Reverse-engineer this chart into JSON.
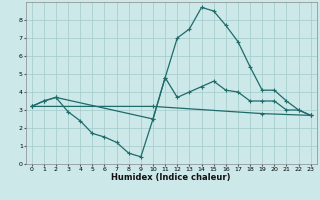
{
  "xlabel": "Humidex (Indice chaleur)",
  "bg_color": "#cce8e8",
  "grid_color": "#aacece",
  "line_color": "#1e6b6b",
  "xlim": [
    -0.5,
    23.5
  ],
  "ylim": [
    0,
    9
  ],
  "xticks": [
    0,
    1,
    2,
    3,
    4,
    5,
    6,
    7,
    8,
    9,
    10,
    11,
    12,
    13,
    14,
    15,
    16,
    17,
    18,
    19,
    20,
    21,
    22,
    23
  ],
  "yticks": [
    0,
    1,
    2,
    3,
    4,
    5,
    6,
    7,
    8
  ],
  "series1_x": [
    0,
    1,
    2,
    3,
    4,
    5,
    6,
    7,
    8,
    9,
    10,
    11,
    12,
    13,
    14,
    15,
    16,
    17,
    18,
    19,
    20,
    21,
    22,
    23
  ],
  "series1_y": [
    3.2,
    3.5,
    3.7,
    2.9,
    2.4,
    1.7,
    1.5,
    1.2,
    0.6,
    0.4,
    2.5,
    4.8,
    3.7,
    4.0,
    4.3,
    4.6,
    4.1,
    4.0,
    3.5,
    3.5,
    3.5,
    3.0,
    3.0,
    2.7
  ],
  "series2_x": [
    0,
    1,
    2,
    10,
    11,
    12,
    13,
    14,
    15,
    16,
    17,
    18,
    19,
    20,
    21,
    22,
    23
  ],
  "series2_y": [
    3.2,
    3.5,
    3.7,
    2.5,
    4.8,
    7.0,
    7.5,
    8.7,
    8.5,
    7.7,
    6.8,
    5.4,
    4.1,
    4.1,
    3.5,
    3.0,
    2.7
  ],
  "series3_x": [
    0,
    10,
    19,
    23
  ],
  "series3_y": [
    3.2,
    3.2,
    2.8,
    2.7
  ]
}
